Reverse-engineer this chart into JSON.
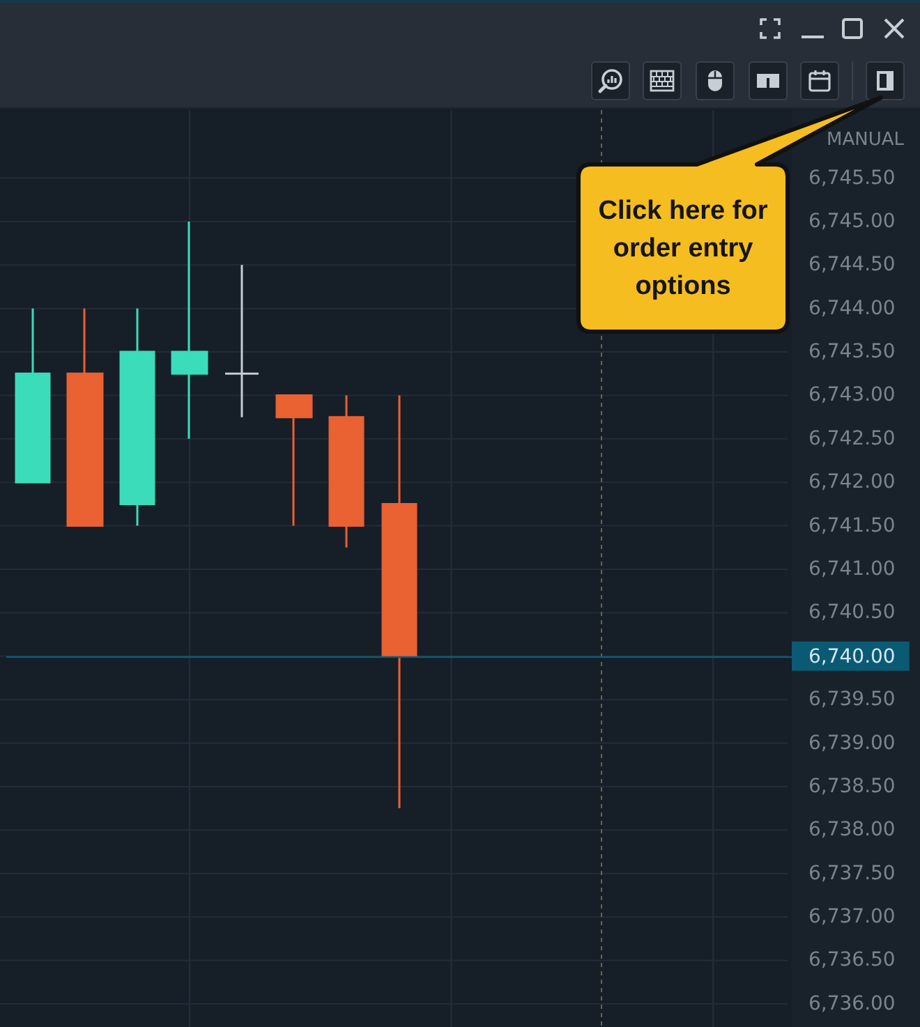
{
  "chart_data": {
    "type": "candlestick",
    "categories": [
      null,
      null,
      null,
      null,
      null,
      null,
      null,
      null,
      null,
      null,
      null,
      null,
      null,
      null,
      null
    ],
    "ohlc": [
      [
        6742,
        6744,
        6742,
        6743.25
      ],
      [
        6743.25,
        6744,
        6741.5,
        6741.5
      ],
      [
        6741.75,
        6744,
        6741.5,
        6743.5
      ],
      [
        6743.25,
        6745,
        6742.5,
        6743.5
      ],
      [
        6743.25,
        6744.5,
        6742.75,
        6743.25
      ],
      [
        6743,
        6743,
        6741.5,
        6742.75
      ],
      [
        6742.75,
        6743,
        6741.25,
        6741.5
      ],
      [
        6741.75,
        6743,
        6738.25,
        6740
      ],
      null,
      null,
      null,
      null,
      null,
      null,
      null
    ],
    "colors": [
      "#3adcb9",
      "#ea6132",
      "#3adcb9",
      "#3adcb9",
      "#c5ccd4",
      "#ea6132",
      "#ea6132",
      "#ea6132",
      null,
      null,
      null,
      null,
      null,
      null,
      null
    ],
    "ylim": [
      6735.75,
      6746.25
    ],
    "yticks": [
      {
        "value": 6736,
        "label": "6,736.00"
      },
      {
        "value": 6736.5,
        "label": "6,736.50"
      },
      {
        "value": 6737,
        "label": "6,737.00"
      },
      {
        "value": 6737.5,
        "label": "6,737.50"
      },
      {
        "value": 6738,
        "label": "6,738.00"
      },
      {
        "value": 6738.5,
        "label": "6,738.50"
      },
      {
        "value": 6739,
        "label": "6,739.00"
      },
      {
        "value": 6739.5,
        "label": "6,739.50"
      },
      {
        "value": 6740,
        "label": "6,740.00"
      },
      {
        "value": 6740.5,
        "label": "6,740.50"
      },
      {
        "value": 6741,
        "label": "6,741.00"
      },
      {
        "value": 6741.5,
        "label": "6,741.50"
      },
      {
        "value": 6742,
        "label": "6,742.00"
      },
      {
        "value": 6742.5,
        "label": "6,742.50"
      },
      {
        "value": 6743,
        "label": "6,743.00"
      },
      {
        "value": 6743.5,
        "label": "6,743.50"
      },
      {
        "value": 6744,
        "label": "6,744.00"
      },
      {
        "value": 6744.5,
        "label": "6,744.50"
      },
      {
        "value": 6745,
        "label": "6,745.00"
      },
      {
        "value": 6745.5,
        "label": "6,745.50"
      }
    ],
    "grid": true,
    "tick_labels": "y",
    "ref_lines": [
      {
        "axis": "y",
        "value": 6740,
        "color": "#0f5d78"
      }
    ],
    "annotations": [
      "MANUAL",
      "Click here for order entry options"
    ]
  }
}
